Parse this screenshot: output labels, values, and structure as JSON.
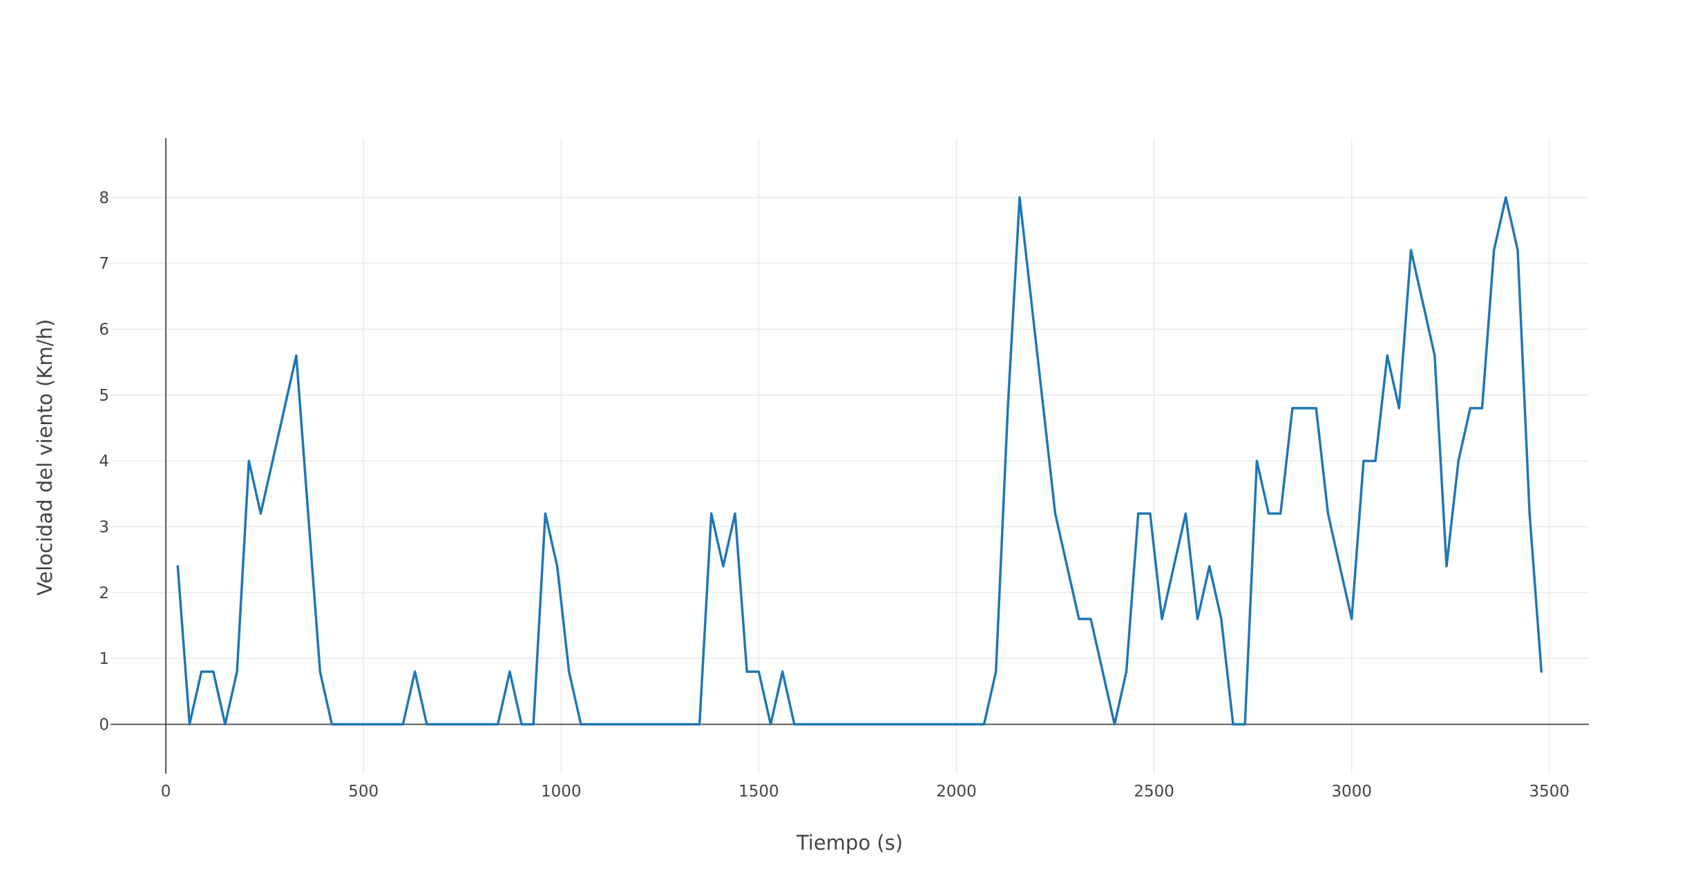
{
  "chart_data": {
    "type": "line",
    "title": "",
    "xlabel": "Tiempo (s)",
    "ylabel": "Velocidad del viento (Km/h)",
    "xlim": [
      -140,
      3600
    ],
    "ylim": [
      -0.75,
      8.9
    ],
    "xticks": [
      0,
      500,
      1000,
      1500,
      2000,
      2500,
      3000,
      3500
    ],
    "yticks": [
      0,
      1,
      2,
      3,
      4,
      5,
      6,
      7,
      8
    ],
    "grid": true,
    "legend": "none",
    "colors": {
      "line": "#1f77b4",
      "grid": "#e9e9e9",
      "axis": "#444444"
    },
    "series": [
      {
        "x": [
          30,
          60,
          90,
          120,
          150,
          180,
          210,
          240,
          270,
          300,
          330,
          360,
          390,
          420,
          450,
          480,
          510,
          540,
          570,
          600,
          630,
          660,
          690,
          720,
          750,
          780,
          810,
          840,
          870,
          900,
          930,
          960,
          990,
          1020,
          1050,
          1080,
          1110,
          1140,
          1170,
          1200,
          1230,
          1260,
          1290,
          1320,
          1350,
          1380,
          1410,
          1440,
          1470,
          1500,
          1530,
          1560,
          1590,
          1620,
          1650,
          1680,
          1710,
          1740,
          1770,
          1800,
          1830,
          1860,
          1890,
          1920,
          1950,
          1980,
          2010,
          2040,
          2070,
          2100,
          2130,
          2160,
          2190,
          2220,
          2250,
          2280,
          2310,
          2340,
          2370,
          2400,
          2430,
          2460,
          2490,
          2520,
          2550,
          2580,
          2610,
          2640,
          2670,
          2700,
          2730,
          2760,
          2790,
          2820,
          2850,
          2880,
          2910,
          2940,
          2970,
          3000,
          3030,
          3060,
          3090,
          3120,
          3150,
          3180,
          3210,
          3240,
          3270,
          3300,
          3330,
          3360,
          3390,
          3420,
          3450,
          3480
        ],
        "y": [
          2.4,
          0,
          0.8,
          0.8,
          0,
          0.8,
          4.0,
          3.2,
          4.0,
          4.8,
          5.6,
          3.2,
          0.8,
          0,
          0,
          0,
          0,
          0,
          0,
          0,
          0.8,
          0,
          0,
          0,
          0,
          0,
          0,
          0,
          0.8,
          0,
          0,
          3.2,
          2.4,
          0.8,
          0,
          0,
          0,
          0,
          0,
          0,
          0,
          0,
          0,
          0,
          0,
          3.2,
          2.4,
          3.2,
          0.8,
          0.8,
          0,
          0.8,
          0,
          0,
          0,
          0,
          0,
          0,
          0,
          0,
          0,
          0,
          0,
          0,
          0,
          0,
          0,
          0,
          0,
          0.8,
          4.8,
          8.0,
          6.4,
          4.8,
          3.2,
          2.4,
          1.6,
          1.6,
          0.8,
          0,
          0.8,
          3.2,
          3.2,
          1.6,
          2.4,
          3.2,
          1.6,
          2.4,
          1.6,
          0,
          0,
          4.0,
          3.2,
          3.2,
          4.8,
          4.8,
          4.8,
          3.2,
          2.4,
          1.6,
          4.0,
          4.0,
          5.6,
          4.8,
          7.2,
          6.4,
          5.6,
          2.4,
          4.0,
          4.8,
          4.8,
          7.2,
          8.0,
          7.2,
          3.2,
          0.8
        ]
      }
    ]
  }
}
